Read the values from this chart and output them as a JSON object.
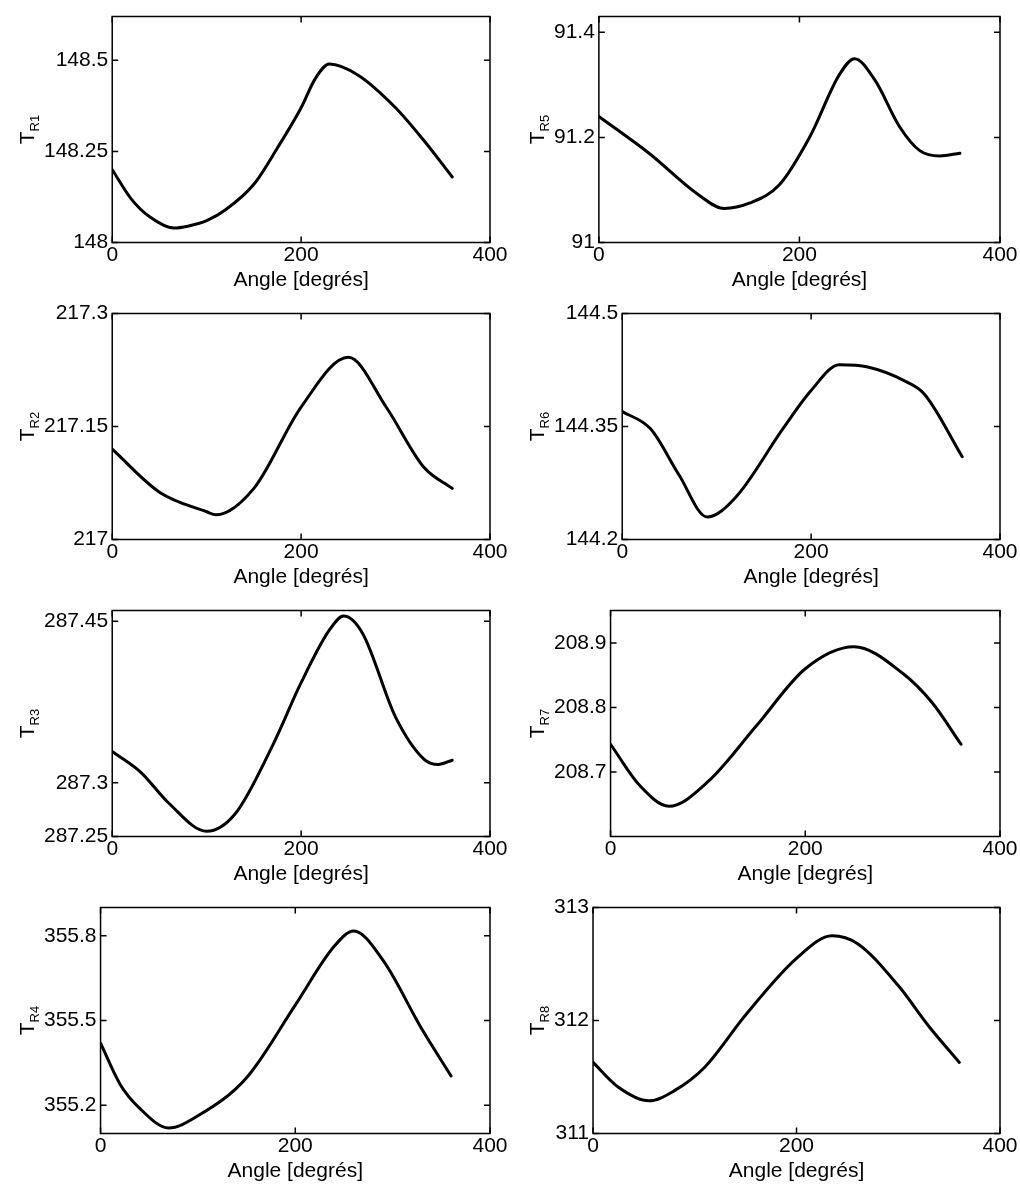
{
  "chart_data": [
    {
      "type": "line",
      "ylabel": "T$_{R1}$",
      "xlabel": "Angle [degrés]",
      "xlim": [
        0,
        400
      ],
      "xticks": [
        0,
        200,
        400
      ],
      "ylim": [
        148,
        148.62
      ],
      "yticks": [
        148,
        148.25,
        148.5
      ],
      "grid": false,
      "legend": false,
      "marker": "none",
      "line_style": "solid",
      "x": [
        0,
        20,
        40,
        65,
        80,
        100,
        120,
        150,
        175,
        200,
        215,
        230,
        260,
        300,
        330,
        360
      ],
      "series": [
        {
          "color": "#000000",
          "values": [
            148.2,
            148.12,
            148.07,
            148.04,
            148.045,
            148.06,
            148.09,
            148.16,
            148.26,
            148.37,
            148.45,
            148.49,
            148.46,
            148.37,
            148.28,
            148.18
          ]
        }
      ]
    },
    {
      "type": "line",
      "ylabel": "T$_{R5}$",
      "xlabel": "Angle [degrés]",
      "xlim": [
        0,
        400
      ],
      "xticks": [
        0,
        200,
        400
      ],
      "ylim": [
        91,
        91.43
      ],
      "yticks": [
        91,
        91.2,
        91.4
      ],
      "grid": false,
      "legend": false,
      "marker": "none",
      "line_style": "solid",
      "x": [
        0,
        50,
        100,
        125,
        150,
        180,
        210,
        240,
        255,
        275,
        300,
        320,
        340,
        360
      ],
      "series": [
        {
          "color": "#000000",
          "values": [
            91.24,
            91.17,
            91.09,
            91.065,
            91.075,
            91.11,
            91.2,
            91.32,
            91.35,
            91.31,
            91.22,
            91.175,
            91.165,
            91.17
          ]
        }
      ]
    },
    {
      "type": "line",
      "ylabel": "T$_{R2}$",
      "xlabel": "Angle [degrés]",
      "xlim": [
        0,
        400
      ],
      "xticks": [
        0,
        200,
        400
      ],
      "ylim": [
        217,
        217.3
      ],
      "yticks": [
        217,
        217.15,
        217.3
      ],
      "grid": false,
      "legend": false,
      "marker": "none",
      "line_style": "solid",
      "x": [
        0,
        50,
        100,
        110,
        150,
        200,
        250,
        290,
        330,
        360
      ],
      "series": [
        {
          "color": "#000000",
          "values": [
            217.12,
            217.063,
            217.037,
            217.033,
            217.068,
            217.176,
            217.242,
            217.176,
            217.096,
            217.068
          ]
        }
      ]
    },
    {
      "type": "line",
      "ylabel": "T$_{R6}$",
      "xlabel": "Angle [degrés]",
      "xlim": [
        0,
        400
      ],
      "xticks": [
        0,
        200,
        400
      ],
      "ylim": [
        144.2,
        144.5
      ],
      "yticks": [
        144.2,
        144.35,
        144.5
      ],
      "grid": false,
      "legend": false,
      "marker": "none",
      "line_style": "solid",
      "x": [
        0,
        30,
        60,
        90,
        120,
        170,
        200,
        230,
        260,
        300,
        320,
        360
      ],
      "series": [
        {
          "color": "#000000",
          "values": [
            144.37,
            144.347,
            144.286,
            144.23,
            144.256,
            144.347,
            144.398,
            144.432,
            144.429,
            144.41,
            144.393,
            144.31
          ]
        }
      ]
    },
    {
      "type": "line",
      "ylabel": "T$_{R3}$",
      "xlabel": "Angle [degrés]",
      "xlim": [
        0,
        400
      ],
      "xticks": [
        0,
        200,
        400
      ],
      "ylim": [
        287.25,
        287.46
      ],
      "yticks": [
        287.25,
        287.3,
        287.45
      ],
      "grid": false,
      "legend": false,
      "marker": "none",
      "line_style": "solid",
      "x": [
        0,
        30,
        60,
        100,
        130,
        170,
        200,
        230,
        245,
        265,
        300,
        330,
        345,
        360
      ],
      "series": [
        {
          "color": "#000000",
          "values": [
            287.329,
            287.31,
            287.281,
            287.255,
            287.271,
            287.335,
            287.393,
            287.442,
            287.455,
            287.439,
            287.361,
            287.322,
            287.317,
            287.321
          ]
        }
      ]
    },
    {
      "type": "line",
      "ylabel": "T$_{R7}$",
      "xlabel": "Angle [degrés]",
      "xlim": [
        0,
        400
      ],
      "xticks": [
        0,
        200,
        400
      ],
      "ylim": [
        208.6,
        208.95
      ],
      "yticks": [
        208.7,
        208.8,
        208.9
      ],
      "grid": false,
      "legend": false,
      "marker": "none",
      "line_style": "solid",
      "x": [
        0,
        30,
        60,
        100,
        150,
        200,
        250,
        300,
        330,
        360
      ],
      "series": [
        {
          "color": "#000000",
          "values": [
            208.743,
            208.679,
            208.647,
            208.685,
            208.772,
            208.86,
            208.894,
            208.853,
            208.808,
            208.743
          ]
        }
      ]
    },
    {
      "type": "line",
      "ylabel": "T$_{R4}$",
      "xlabel": "Angle [degrés]",
      "xlim": [
        0,
        400
      ],
      "xticks": [
        0,
        200,
        400
      ],
      "ylim": [
        355.1,
        355.9
      ],
      "yticks": [
        355.2,
        355.5,
        355.8
      ],
      "grid": false,
      "legend": false,
      "marker": "none",
      "line_style": "solid",
      "x": [
        0,
        20,
        40,
        70,
        100,
        150,
        200,
        240,
        260,
        290,
        330,
        360
      ],
      "series": [
        {
          "color": "#000000",
          "values": [
            355.42,
            355.275,
            355.19,
            355.12,
            355.163,
            355.298,
            355.555,
            355.763,
            355.817,
            355.714,
            355.47,
            355.304
          ]
        }
      ]
    },
    {
      "type": "line",
      "ylabel": "T$_{R8}$",
      "xlabel": "Angle [degrés]",
      "xlim": [
        0,
        400
      ],
      "xticks": [
        0,
        200,
        400
      ],
      "ylim": [
        311,
        313
      ],
      "yticks": [
        311,
        312,
        313
      ],
      "grid": false,
      "legend": false,
      "marker": "none",
      "line_style": "solid",
      "x": [
        0,
        25,
        55,
        80,
        110,
        150,
        200,
        235,
        260,
        300,
        330,
        360
      ],
      "series": [
        {
          "color": "#000000",
          "values": [
            311.63,
            311.41,
            311.29,
            311.38,
            311.59,
            312.05,
            312.55,
            312.75,
            312.68,
            312.31,
            311.95,
            311.63
          ]
        }
      ]
    }
  ]
}
